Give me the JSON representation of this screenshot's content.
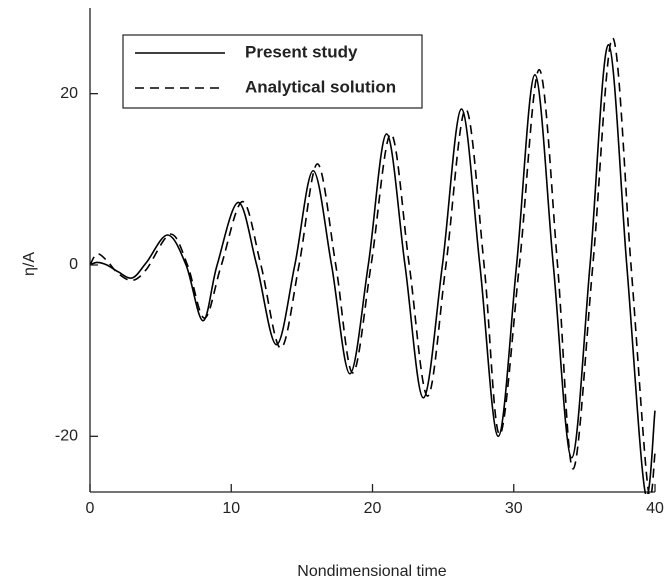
{
  "chart_data": {
    "type": "line",
    "x_label": "Nondimensional time",
    "y_label": "η/A",
    "xlim": [
      0,
      40
    ],
    "xticks": [
      0,
      10,
      20,
      30,
      40
    ],
    "ylim": [
      -26.5,
      30
    ],
    "yticks": [
      -20,
      0,
      20
    ],
    "legend": "top-left",
    "series": [
      {
        "name": "Present study",
        "color": "#000000",
        "dash": "solid",
        "x": [
          0,
          0.5,
          1.2,
          2,
          3,
          4,
          5.5,
          6.8,
          8,
          9,
          10.5,
          11.8,
          13.2,
          14.5,
          15.8,
          17.1,
          18.4,
          19.7,
          21,
          22.3,
          23.6,
          24.95,
          26.3,
          27.6,
          28.9,
          30.2,
          31.5,
          32.8,
          34.1,
          35.4,
          36.7,
          38,
          39.3,
          40
        ],
        "values": [
          0,
          0.3,
          0,
          -0.8,
          -1.5,
          0.3,
          3.5,
          0,
          -6.5,
          0,
          7.3,
          0,
          -9.3,
          0,
          11,
          0,
          -12.7,
          0,
          15.3,
          0,
          -15.5,
          0,
          18.2,
          0,
          -20,
          0,
          22.2,
          0,
          -22.5,
          0,
          25.7,
          0,
          -26.5,
          -17
        ]
      },
      {
        "name": "Analytical solution",
        "color": "#000000",
        "dash": "dashed",
        "x": [
          0,
          0.5,
          1.2,
          2,
          3,
          4,
          5.7,
          6.9,
          8.1,
          9.3,
          10.8,
          12.1,
          13.5,
          14.8,
          16.1,
          17.4,
          18.6,
          19.9,
          21.3,
          22.6,
          23.9,
          25.2,
          26.6,
          27.9,
          29,
          30.4,
          31.8,
          33.1,
          34.2,
          35.6,
          37,
          38.3,
          39.5,
          40
        ],
        "values": [
          0,
          1.3,
          0.5,
          -1,
          -1.8,
          -0.5,
          3.6,
          0,
          -6.2,
          0,
          7.4,
          0,
          -9.7,
          0,
          11.8,
          0,
          -12.6,
          0,
          15.3,
          0,
          -15.3,
          0,
          18.2,
          0,
          -19.8,
          0,
          22.8,
          0,
          -23.8,
          0,
          26.5,
          0,
          -26,
          -22
        ]
      }
    ]
  }
}
